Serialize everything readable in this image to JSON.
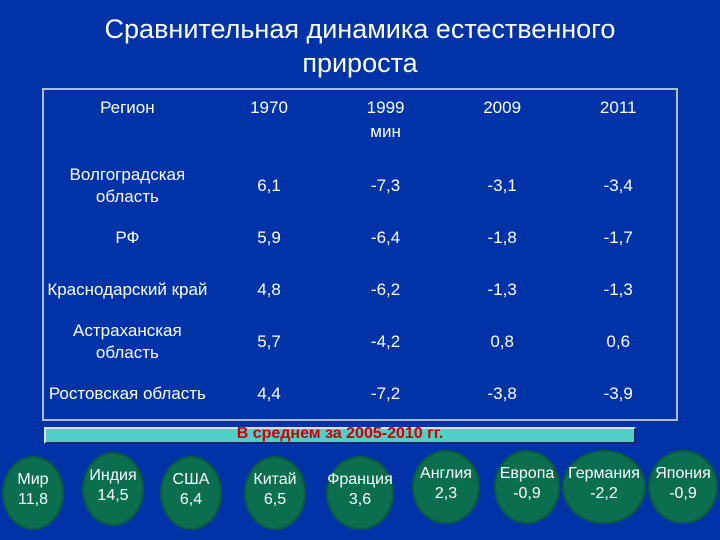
{
  "title": {
    "line1": "Сравнительная динамика естественного",
    "line2": "прироста"
  },
  "table": {
    "headers": {
      "region": "Регион",
      "y1970": "1970",
      "y1999": "1999",
      "y1999_sub": "мин",
      "y2009": "2009",
      "y2011": "2011"
    },
    "rows": [
      {
        "region": "Волгоградская область",
        "y1970": "6,1",
        "y1999": "-7,3",
        "y2009": "-3,1",
        "y2011": "-3,4"
      },
      {
        "region": "РФ",
        "y1970": "5,9",
        "y1999": "-6,4",
        "y2009": "-1,8",
        "y2011": "-1,7"
      },
      {
        "region": "Краснодарский край",
        "y1970": "4,8",
        "y1999": "-6,2",
        "y2009": "-1,3",
        "y2011": "-1,3"
      },
      {
        "region": "Астраханская область",
        "y1970": "5,7",
        "y1999": "-4,2",
        "y2009": "0,8",
        "y2011": "0,6"
      },
      {
        "region": "Ростовская область",
        "y1970": "4,4",
        "y1999": "-7,2",
        "y2009": "-3,8",
        "y2011": "-3,9"
      }
    ]
  },
  "average_label": "В среднем за 2005-2010 гг.",
  "countries": [
    {
      "name": "Мир",
      "value": "11,8"
    },
    {
      "name": "Индия",
      "value": "14,5"
    },
    {
      "name": "США",
      "value": "6,4"
    },
    {
      "name": "Китай",
      "value": "6,5"
    },
    {
      "name": "Франция",
      "value": "3,6"
    },
    {
      "name": "Англия",
      "value": "2,3"
    },
    {
      "name": "Европа",
      "value": "-0,9"
    },
    {
      "name": "Германия",
      "value": "-2,2"
    },
    {
      "name": "Япония",
      "value": "-0,9"
    }
  ]
}
